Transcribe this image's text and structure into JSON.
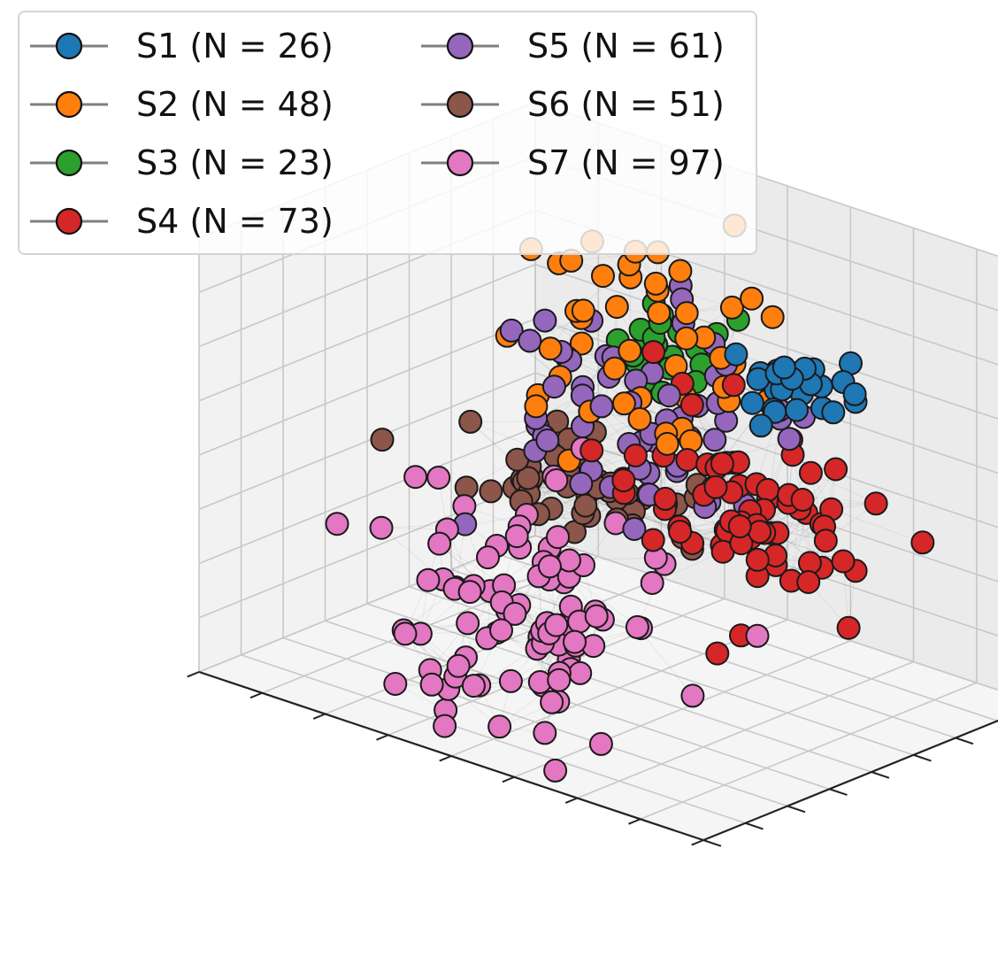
{
  "chart_data": {
    "type": "scatter",
    "projection": "3d",
    "title": "",
    "xlabel": "",
    "ylabel": "",
    "zlabel": "",
    "grid": true,
    "tick_labels": false,
    "legend_placement": "upper-left",
    "legend_columns": 2,
    "edges": "dense translucent gray network connecting points within and between clusters",
    "series": [
      {
        "name": "S1 (N = 26)",
        "label": "S1 (N = 26)",
        "count": 26,
        "color": "#1f77b4",
        "centroid": [
          -0.9,
          -0.3,
          0.85
        ],
        "spread": [
          0.12,
          0.1,
          0.08
        ]
      },
      {
        "name": "S2 (N = 48)",
        "label": "S2 (N = 48)",
        "count": 48,
        "color": "#ff7f0e",
        "centroid": [
          -0.05,
          0.1,
          0.55
        ],
        "spread": [
          0.25,
          0.2,
          0.25
        ]
      },
      {
        "name": "S3 (N = 23)",
        "label": "S3 (N = 23)",
        "count": 23,
        "color": "#2ca02c",
        "centroid": [
          0.3,
          0.75,
          0.2
        ],
        "spread": [
          0.12,
          0.12,
          0.12
        ]
      },
      {
        "name": "S4 (N = 73)",
        "label": "S4 (N = 73)",
        "count": 73,
        "color": "#d62728",
        "centroid": [
          -0.55,
          -0.15,
          0.1
        ],
        "spread": [
          0.25,
          0.15,
          0.18
        ]
      },
      {
        "name": "S5 (N = 61)",
        "label": "S5 (N = 61)",
        "count": 61,
        "color": "#9467bd",
        "centroid": [
          0.05,
          0.2,
          0.15
        ],
        "spread": [
          0.25,
          0.25,
          0.25
        ]
      },
      {
        "name": "S6 (N = 51)",
        "label": "S6 (N = 51)",
        "count": 51,
        "color": "#8c564b",
        "centroid": [
          0.45,
          0.55,
          -0.45
        ],
        "spread": [
          0.25,
          0.15,
          0.1
        ]
      },
      {
        "name": "S7 (N = 97)",
        "label": "S7 (N = 97)",
        "count": 97,
        "color": "#e377c2",
        "centroid": [
          0.1,
          -0.3,
          -0.6
        ],
        "spread": [
          0.25,
          0.2,
          0.25
        ]
      }
    ]
  }
}
